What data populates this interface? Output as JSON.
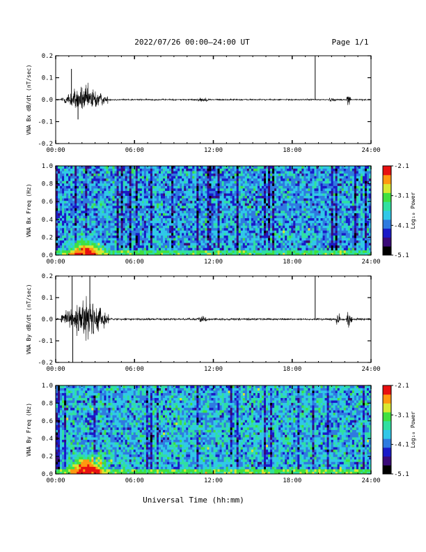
{
  "header": {
    "title": "2022/07/26  00:00–24:00 UT",
    "page_label": "Page 1/1"
  },
  "footer": {
    "xlabel": "Universal Time (hh:mm)"
  },
  "colors": {
    "trace": "#000000",
    "colormap": [
      "#000000",
      "#3a0a78",
      "#1a1ac8",
      "#2f7be0",
      "#30c8e8",
      "#30e0a0",
      "#40e040",
      "#d8e830",
      "#ff9810",
      "#e81010"
    ]
  },
  "chart_data": [
    {
      "id": "bx_ts",
      "type": "line",
      "title": "",
      "xlabel": "",
      "ylabel": "VNA Bx dB/dt (nT/sec)",
      "x_unit": "hours UT",
      "xlim": [
        0,
        24
      ],
      "ylim": [
        -0.2,
        0.2
      ],
      "x_ticks": [
        "00:00",
        "06:00",
        "12:00",
        "18:00",
        "24:00"
      ],
      "y_ticks": [
        "0.2",
        "0.1",
        "0.0",
        "-0.1",
        "-0.2"
      ],
      "baseline": 0.0,
      "bursts": [
        {
          "start": 0.4,
          "end": 4.0,
          "amp": 0.075
        },
        {
          "start": 10.6,
          "end": 11.8,
          "amp": 0.012
        },
        {
          "start": 20.7,
          "end": 21.4,
          "amp": 0.012
        },
        {
          "start": 22.1,
          "end": 22.5,
          "amp": 0.055
        }
      ],
      "background_noise": 0.004,
      "spikes": [
        {
          "x": 1.2,
          "y": 0.14
        },
        {
          "x": 1.7,
          "y": -0.09
        },
        {
          "x": 19.75,
          "y": 0.2
        }
      ]
    },
    {
      "id": "bx_spec",
      "type": "heatmap",
      "title": "",
      "xlabel": "",
      "ylabel": "VNA Bx Freq (Hz)",
      "xlim": [
        0,
        24
      ],
      "ylim": [
        0,
        1.0
      ],
      "x_ticks": [
        "00:00",
        "06:00",
        "12:00",
        "18:00",
        "24:00"
      ],
      "y_ticks": [
        "1.0",
        "0.8",
        "0.6",
        "0.4",
        "0.2",
        "0.0"
      ],
      "colorbar": {
        "label": "Log₁₀ Power",
        "min": -5.1,
        "max": -2.1,
        "ticks": [
          "-2.1",
          "-3.1",
          "-4.1",
          "-5.1"
        ]
      },
      "hot_region": {
        "t_start": 0.5,
        "t_end": 4.0,
        "f_max": 0.2,
        "peak": -2.3
      },
      "low_band_level": -3.3,
      "mean_level": -3.9
    },
    {
      "id": "by_ts",
      "type": "line",
      "title": "",
      "xlabel": "",
      "ylabel": "VNA By dB/dt (nT/sec)",
      "x_unit": "hours UT",
      "xlim": [
        0,
        24
      ],
      "ylim": [
        -0.2,
        0.2
      ],
      "x_ticks": [
        "00:00",
        "06:00",
        "12:00",
        "18:00",
        "24:00"
      ],
      "y_ticks": [
        "0.2",
        "0.1",
        "0.0",
        "-0.1",
        "-0.2"
      ],
      "baseline": 0.0,
      "bursts": [
        {
          "start": 0.4,
          "end": 4.1,
          "amp": 0.11
        },
        {
          "start": 10.8,
          "end": 11.6,
          "amp": 0.02
        },
        {
          "start": 13.6,
          "end": 14.2,
          "amp": 0.008
        },
        {
          "start": 21.3,
          "end": 21.7,
          "amp": 0.035
        },
        {
          "start": 22.1,
          "end": 22.6,
          "amp": 0.06
        }
      ],
      "background_noise": 0.006,
      "spikes": [
        {
          "x": 1.3,
          "y": -0.2
        },
        {
          "x": 1.25,
          "y": 0.2
        },
        {
          "x": 2.6,
          "y": 0.2
        },
        {
          "x": 19.75,
          "y": 0.2
        }
      ]
    },
    {
      "id": "by_spec",
      "type": "heatmap",
      "title": "",
      "xlabel": "",
      "ylabel": "VNA By Freq (Hz)",
      "xlim": [
        0,
        24
      ],
      "ylim": [
        0,
        1.0
      ],
      "x_ticks": [
        "00:00",
        "06:00",
        "12:00",
        "18:00",
        "24:00"
      ],
      "y_ticks": [
        "1.0",
        "0.8",
        "0.6",
        "0.4",
        "0.2",
        "0.0"
      ],
      "colorbar": {
        "label": "Log₁₀ Power",
        "min": -5.1,
        "max": -2.1,
        "ticks": [
          "-2.1",
          "-3.1",
          "-4.1",
          "-5.1"
        ]
      },
      "hot_region": {
        "t_start": 0.5,
        "t_end": 4.3,
        "f_max": 0.25,
        "peak": -2.2
      },
      "low_band_level": -3.2,
      "mean_level": -3.8
    }
  ]
}
